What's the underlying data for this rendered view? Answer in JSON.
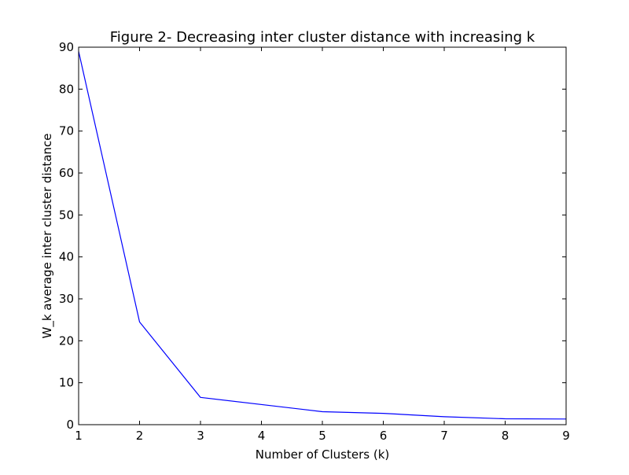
{
  "chart_data": {
    "type": "line",
    "title": "Figure 2- Decreasing inter cluster distance with increasing k",
    "xlabel": "Number of Clusters (k)",
    "ylabel": "W_k average inter cluster distance",
    "xlim": [
      1,
      9
    ],
    "ylim": [
      0,
      90
    ],
    "x_ticks": [
      "1",
      "2",
      "3",
      "4",
      "5",
      "6",
      "7",
      "8",
      "9"
    ],
    "y_ticks": [
      "0",
      "10",
      "20",
      "30",
      "40",
      "50",
      "60",
      "70",
      "80",
      "90"
    ],
    "grid": false,
    "legend": "none",
    "series": [
      {
        "color": "#0000ff",
        "x": [
          1,
          2,
          3,
          5,
          6,
          7,
          8,
          9
        ],
        "y": [
          89,
          24.5,
          6.5,
          3.1,
          2.7,
          1.9,
          1.4,
          1.35
        ]
      }
    ]
  }
}
